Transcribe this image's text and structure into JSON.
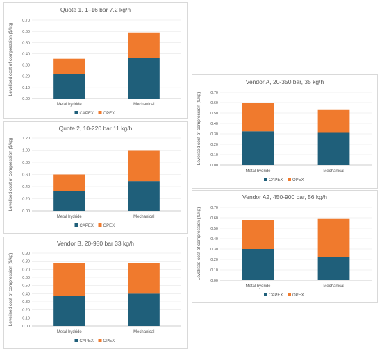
{
  "colors": {
    "capex": "#1f5f7a",
    "opex": "#f07a2d"
  },
  "chart_data": [
    {
      "type": "bar",
      "stacked": true,
      "title": "Quote 1, 1–16 bar 7.2 kg/h",
      "ylabel": "Levelised cost of compression ($/kg)",
      "categories": [
        "Metal hydride",
        "Mechanical"
      ],
      "series": [
        {
          "name": "CAPEX",
          "values": [
            0.22,
            0.365
          ]
        },
        {
          "name": "OPEX",
          "values": [
            0.135,
            0.225
          ]
        }
      ],
      "ylim": [
        0,
        0.7
      ],
      "yticks": [
        "0.00",
        "0.10",
        "0.20",
        "0.30",
        "0.40",
        "0.50",
        "0.60",
        "0.70"
      ],
      "grid": true,
      "legend": "bottom"
    },
    {
      "type": "bar",
      "stacked": true,
      "title": "Quote 2, 10-220 bar 11 kg/h",
      "ylabel": "Levelised cost of compression ($/kg)",
      "categories": [
        "Metal hydride",
        "Mechanical"
      ],
      "series": [
        {
          "name": "CAPEX",
          "values": [
            0.32,
            0.49
          ]
        },
        {
          "name": "OPEX",
          "values": [
            0.28,
            0.51
          ]
        }
      ],
      "ylim": [
        0,
        1.2
      ],
      "yticks": [
        "0.00",
        "0.20",
        "0.40",
        "0.60",
        "0.80",
        "1.00",
        "1.20"
      ],
      "grid": true,
      "legend": "bottom"
    },
    {
      "type": "bar",
      "stacked": true,
      "title": "Vendor B, 20-950 bar 33 kg/h",
      "ylabel": "Levelised cost of compression ($/kg)",
      "categories": [
        "Metal hydride",
        "Mechanical"
      ],
      "series": [
        {
          "name": "CAPEX",
          "values": [
            0.37,
            0.4
          ]
        },
        {
          "name": "OPEX",
          "values": [
            0.41,
            0.38
          ]
        }
      ],
      "ylim": [
        0,
        0.9
      ],
      "yticks": [
        "0.00",
        "0.10",
        "0.20",
        "0.30",
        "0.40",
        "0.50",
        "0.60",
        "0.70",
        "0.80",
        "0.90"
      ],
      "grid": true,
      "legend": "bottom"
    },
    {
      "type": "bar",
      "stacked": true,
      "title": "Vendor A, 20-350 bar, 35 kg/h",
      "ylabel": "Levelised cost of compression ($/kg)",
      "categories": [
        "Metal hydride",
        "Mechanical"
      ],
      "series": [
        {
          "name": "CAPEX",
          "values": [
            0.325,
            0.31
          ]
        },
        {
          "name": "OPEX",
          "values": [
            0.275,
            0.225
          ]
        }
      ],
      "ylim": [
        0,
        0.7
      ],
      "yticks": [
        "0.00",
        "0.10",
        "0.20",
        "0.30",
        "0.40",
        "0.50",
        "0.60",
        "0.70"
      ],
      "grid": true,
      "legend": "bottom"
    },
    {
      "type": "bar",
      "stacked": true,
      "title": "Vendor A2, 450-900 bar, 56 kg/h",
      "ylabel": "Levelised cost of compression ($/kg)",
      "categories": [
        "Metal hydride",
        "Mechanical"
      ],
      "series": [
        {
          "name": "CAPEX",
          "values": [
            0.3,
            0.22
          ]
        },
        {
          "name": "OPEX",
          "values": [
            0.28,
            0.375
          ]
        }
      ],
      "ylim": [
        0,
        0.7
      ],
      "yticks": [
        "0.00",
        "0.10",
        "0.20",
        "0.30",
        "0.40",
        "0.50",
        "0.60",
        "0.70"
      ],
      "grid": true,
      "legend": "bottom"
    }
  ]
}
